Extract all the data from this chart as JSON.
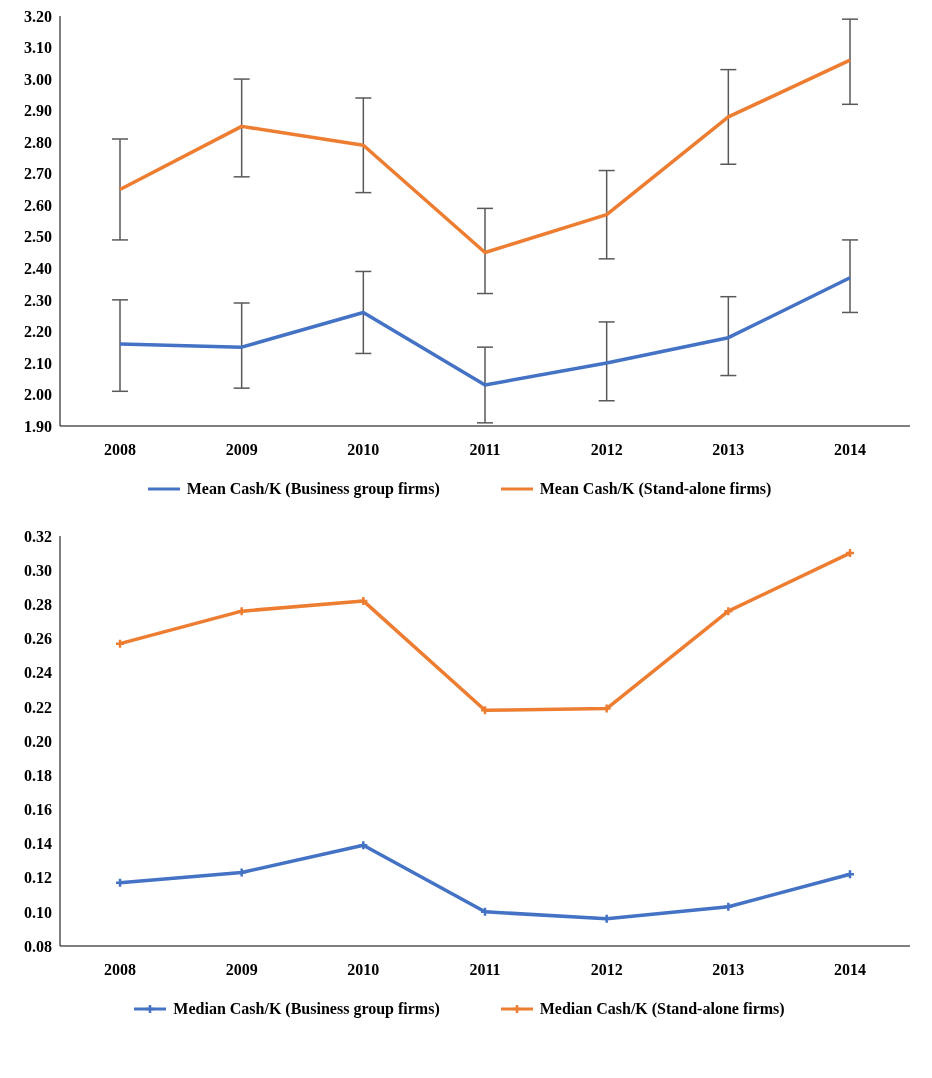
{
  "chart_data": [
    {
      "type": "line",
      "categories": [
        "2008",
        "2009",
        "2010",
        "2011",
        "2012",
        "2013",
        "2014"
      ],
      "ylim": [
        1.9,
        3.2
      ],
      "yticks": [
        {
          "value": 1.9,
          "label": "1.90"
        },
        {
          "value": 2.0,
          "label": "2.00"
        },
        {
          "value": 2.1,
          "label": "2.10"
        },
        {
          "value": 2.2,
          "label": "2.20"
        },
        {
          "value": 2.3,
          "label": "2.30"
        },
        {
          "value": 2.4,
          "label": "2.40"
        },
        {
          "value": 2.5,
          "label": "2.50"
        },
        {
          "value": 2.6,
          "label": "2.60"
        },
        {
          "value": 2.7,
          "label": "2.70"
        },
        {
          "value": 2.8,
          "label": "2.80"
        },
        {
          "value": 2.9,
          "label": "2.90"
        },
        {
          "value": 3.0,
          "label": "3.00"
        },
        {
          "value": 3.1,
          "label": "3.10"
        },
        {
          "value": 3.2,
          "label": "3.20"
        }
      ],
      "grid": false,
      "legend": "bottom",
      "marker": "none",
      "line_style": "solid",
      "series": [
        {
          "name": "Mean Cash/K (Business group firms)",
          "color": "#4472c4",
          "values": [
            2.16,
            2.15,
            2.26,
            2.03,
            2.1,
            2.18,
            2.37
          ],
          "errors": [
            [
              2.01,
              2.3
            ],
            [
              2.02,
              2.29
            ],
            [
              2.13,
              2.39
            ],
            [
              1.91,
              2.15
            ],
            [
              1.98,
              2.23
            ],
            [
              2.06,
              2.31
            ],
            [
              2.26,
              2.49
            ]
          ]
        },
        {
          "name": "Mean Cash/K (Stand-alone firms)",
          "color": "#ed7d31",
          "values": [
            2.65,
            2.85,
            2.79,
            2.45,
            2.57,
            2.88,
            3.06
          ],
          "errors": [
            [
              2.49,
              2.81
            ],
            [
              2.69,
              3.0
            ],
            [
              2.64,
              2.94
            ],
            [
              2.32,
              2.59
            ],
            [
              2.43,
              2.71
            ],
            [
              2.73,
              3.03
            ],
            [
              2.92,
              3.19
            ]
          ]
        }
      ]
    },
    {
      "type": "line",
      "categories": [
        "2008",
        "2009",
        "2010",
        "2011",
        "2012",
        "2013",
        "2014"
      ],
      "ylim": [
        0.08,
        0.32
      ],
      "yticks": [
        {
          "value": 0.08,
          "label": "0.08"
        },
        {
          "value": 0.1,
          "label": "0.10"
        },
        {
          "value": 0.12,
          "label": "0.12"
        },
        {
          "value": 0.14,
          "label": "0.14"
        },
        {
          "value": 0.16,
          "label": "0.16"
        },
        {
          "value": 0.18,
          "label": "0.18"
        },
        {
          "value": 0.2,
          "label": "0.20"
        },
        {
          "value": 0.22,
          "label": "0.22"
        },
        {
          "value": 0.24,
          "label": "0.24"
        },
        {
          "value": 0.26,
          "label": "0.26"
        },
        {
          "value": 0.28,
          "label": "0.28"
        },
        {
          "value": 0.3,
          "label": "0.30"
        },
        {
          "value": 0.32,
          "label": "0.32"
        }
      ],
      "grid": false,
      "legend": "bottom",
      "marker": "cross",
      "line_style": "solid",
      "series": [
        {
          "name": "Median Cash/K (Business group firms)",
          "color": "#4472c4",
          "values": [
            0.117,
            0.123,
            0.139,
            0.1,
            0.096,
            0.103,
            0.122
          ]
        },
        {
          "name": "Median Cash/K (Stand-alone firms)",
          "color": "#ed7d31",
          "values": [
            0.257,
            0.276,
            0.282,
            0.218,
            0.219,
            0.276,
            0.31
          ]
        }
      ]
    }
  ]
}
